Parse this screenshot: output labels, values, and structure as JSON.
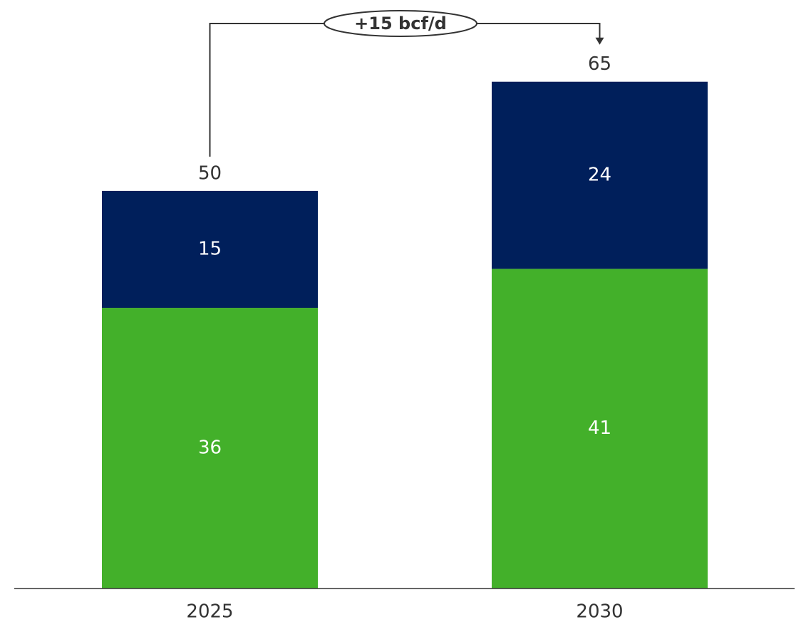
{
  "chart_data": {
    "type": "stacked_bar",
    "categories": [
      "2025",
      "2030"
    ],
    "series": [
      {
        "color": "#43b02a",
        "values": [
          36,
          41
        ]
      },
      {
        "color": "#001f5b",
        "values": [
          15,
          24
        ]
      }
    ],
    "totals": [
      50,
      65
    ],
    "annotation": "+15 bcf/d",
    "ylim": [
      0,
      70
    ]
  }
}
